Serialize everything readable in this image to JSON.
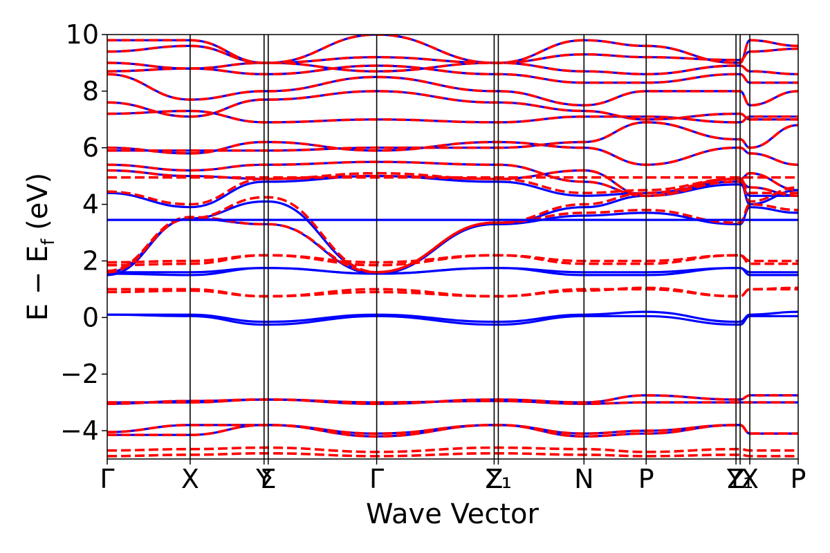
{
  "chart_data": {
    "type": "line",
    "xlabel": "Wave Vector",
    "ylabel_parts": {
      "main": "E − E",
      "subscript": "f",
      "unit": " (eV)"
    },
    "ylim": [
      -5,
      10
    ],
    "yticks": [
      -4,
      -2,
      0,
      2,
      4,
      6,
      8,
      10
    ],
    "ytick_labels": [
      "−4",
      "−2",
      "0",
      "2",
      "4",
      "6",
      "8",
      "10"
    ],
    "xlim": [
      0,
      10
    ],
    "kpoints": [
      {
        "x": 0.0,
        "label": "Γ"
      },
      {
        "x": 1.2,
        "label": "X"
      },
      {
        "x": 2.27,
        "label": "Y"
      },
      {
        "x": 2.33,
        "label": "Σ"
      },
      {
        "x": 3.9,
        "label": "Γ"
      },
      {
        "x": 5.6,
        "label": "Z"
      },
      {
        "x": 5.66,
        "label": "Σ₁"
      },
      {
        "x": 6.9,
        "label": "N"
      },
      {
        "x": 7.8,
        "label": "P"
      },
      {
        "x": 9.1,
        "label": "Z"
      },
      {
        "x": 9.16,
        "label": "Y₁"
      },
      {
        "x": 9.3,
        "label": "X"
      },
      {
        "x": 10.0,
        "label": "P"
      }
    ],
    "series": [
      {
        "style": "solid",
        "color": "#0000ff"
      },
      {
        "style": "dashed",
        "color": "#ff0000"
      }
    ],
    "flat_band": {
      "y": 3.45,
      "color": "#0000ff"
    },
    "bands": {
      "both": [
        [
          -4.15,
          -4.15,
          -3.8,
          -3.8,
          -4.1,
          -3.8,
          -3.8,
          -4.1,
          -4.0,
          -3.8,
          -3.8,
          -4.1,
          -4.1
        ],
        [
          -4.05,
          -3.8,
          -3.8,
          -3.8,
          -4.2,
          -3.8,
          -3.8,
          -4.2,
          -4.1,
          -3.8,
          -3.8,
          -4.1,
          -4.1
        ],
        [
          -3.05,
          -2.95,
          -2.9,
          -2.9,
          -3.05,
          -2.9,
          -2.9,
          -3.0,
          -2.75,
          -2.9,
          -2.9,
          -2.75,
          -2.75
        ],
        [
          -3.0,
          -3.0,
          -2.9,
          -2.9,
          -3.0,
          -2.95,
          -2.95,
          -3.05,
          -3.0,
          -3.0,
          -3.0,
          -3.0,
          -3.0
        ],
        [
          5.2,
          5.0,
          4.9,
          4.9,
          5.0,
          4.9,
          4.9,
          5.2,
          4.3,
          4.9,
          4.9,
          5.1,
          4.5
        ],
        [
          5.4,
          5.2,
          5.4,
          5.4,
          5.5,
          5.4,
          5.4,
          4.8,
          4.3,
          4.8,
          4.8,
          4.6,
          4.3
        ],
        [
          6.0,
          5.8,
          6.2,
          6.2,
          5.9,
          6.2,
          6.2,
          6.0,
          5.4,
          6.0,
          6.0,
          5.8,
          5.4
        ],
        [
          5.9,
          5.9,
          5.9,
          5.9,
          6.0,
          6.0,
          6.0,
          6.2,
          6.9,
          6.3,
          6.3,
          6.0,
          6.8
        ],
        [
          7.2,
          7.3,
          6.9,
          6.9,
          7.0,
          6.9,
          6.9,
          7.1,
          7.1,
          6.9,
          6.9,
          7.1,
          7.1
        ],
        [
          7.6,
          7.1,
          7.7,
          7.7,
          8.0,
          7.6,
          7.6,
          7.3,
          7.0,
          7.2,
          7.2,
          7.0,
          7.0
        ],
        [
          8.6,
          7.7,
          8.0,
          8.0,
          8.5,
          8.0,
          8.0,
          7.5,
          8.0,
          8.0,
          8.0,
          7.5,
          8.0
        ],
        [
          8.7,
          8.8,
          8.6,
          8.6,
          8.9,
          8.6,
          8.6,
          8.3,
          8.3,
          8.6,
          8.6,
          8.3,
          8.3
        ],
        [
          9.0,
          8.8,
          9.0,
          9.0,
          8.7,
          9.0,
          9.0,
          8.7,
          8.6,
          8.9,
          8.9,
          8.7,
          8.6
        ],
        [
          9.4,
          9.6,
          9.0,
          9.0,
          9.2,
          9.0,
          9.0,
          9.3,
          9.2,
          9.1,
          9.1,
          9.4,
          9.5
        ],
        [
          9.8,
          9.8,
          9.0,
          9.0,
          10.0,
          9.0,
          9.0,
          9.8,
          9.6,
          9.0,
          9.0,
          9.8,
          9.6
        ]
      ],
      "blue": [
        [
          0.1,
          0.1,
          -0.15,
          -0.15,
          0.1,
          -0.15,
          -0.15,
          0.1,
          0.2,
          -0.15,
          -0.15,
          0.1,
          0.2
        ],
        [
          0.1,
          0.05,
          -0.25,
          -0.25,
          0.05,
          -0.25,
          -0.25,
          0.05,
          0.05,
          -0.25,
          -0.25,
          0.05,
          0.05
        ],
        [
          1.55,
          1.5,
          1.75,
          1.75,
          1.55,
          1.75,
          1.75,
          1.5,
          1.5,
          1.75,
          1.75,
          1.5,
          1.5
        ],
        [
          1.6,
          1.6,
          1.75,
          1.75,
          1.55,
          1.75,
          1.75,
          1.6,
          1.6,
          1.75,
          1.75,
          1.6,
          1.6
        ],
        [
          1.5,
          3.5,
          4.1,
          4.1,
          1.55,
          3.3,
          3.3,
          3.9,
          4.3,
          4.7,
          4.7,
          4.3,
          4.3
        ],
        [
          1.6,
          3.5,
          3.3,
          3.3,
          1.55,
          3.3,
          3.3,
          3.6,
          3.7,
          3.3,
          3.3,
          3.9,
          3.7
        ],
        [
          4.4,
          3.9,
          4.8,
          4.8,
          5.0,
          4.8,
          4.8,
          4.3,
          4.4,
          4.8,
          4.8,
          4.0,
          4.5
        ]
      ],
      "red": [
        [
          0.9,
          0.95,
          0.75,
          0.75,
          0.9,
          0.75,
          0.75,
          0.95,
          1.05,
          0.75,
          0.75,
          1.0,
          1.05
        ],
        [
          1.0,
          1.0,
          0.75,
          0.75,
          1.0,
          0.75,
          0.75,
          1.0,
          1.0,
          0.75,
          0.75,
          1.0,
          1.0
        ],
        [
          1.85,
          1.9,
          2.2,
          2.2,
          1.85,
          2.2,
          2.2,
          1.9,
          1.9,
          2.2,
          2.2,
          1.9,
          1.9
        ],
        [
          1.95,
          2.0,
          2.2,
          2.2,
          1.95,
          2.2,
          2.2,
          2.0,
          2.0,
          2.2,
          2.2,
          2.0,
          2.0
        ],
        [
          1.6,
          3.5,
          4.25,
          4.25,
          1.6,
          3.35,
          3.35,
          4.0,
          4.4,
          4.9,
          4.9,
          4.4,
          4.4
        ],
        [
          1.65,
          3.55,
          3.3,
          3.3,
          1.6,
          3.35,
          3.35,
          3.7,
          3.8,
          3.35,
          3.35,
          4.0,
          3.8
        ],
        [
          4.45,
          4.0,
          4.9,
          4.9,
          5.1,
          4.9,
          4.9,
          4.4,
          4.5,
          4.9,
          4.9,
          4.1,
          4.6
        ],
        [
          4.95,
          4.95,
          4.95,
          4.95,
          4.95,
          4.95,
          4.95,
          4.95,
          4.95,
          4.95,
          4.95,
          4.95,
          4.95
        ],
        [
          -4.9,
          -4.85,
          -4.8,
          -4.8,
          -4.9,
          -4.8,
          -4.8,
          -4.85,
          -4.9,
          -4.85,
          -4.85,
          -4.9,
          -4.9
        ],
        [
          -4.7,
          -4.65,
          -4.6,
          -4.6,
          -4.75,
          -4.6,
          -4.6,
          -4.65,
          -4.75,
          -4.65,
          -4.65,
          -4.7,
          -4.7
        ]
      ]
    }
  }
}
